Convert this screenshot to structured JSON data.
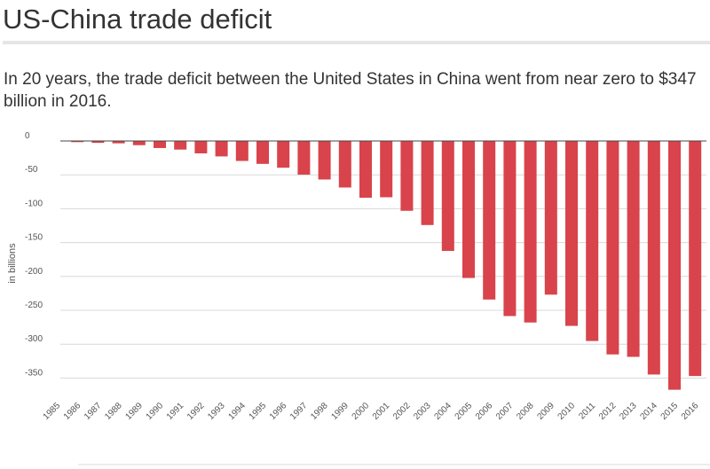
{
  "header": {
    "title": "US-China trade deficit",
    "subtitle": "In 20 years, the trade deficit between the United States in China went from near zero to $347 billion in 2016."
  },
  "colors": {
    "bar": "#d9434b",
    "grid": "#d8d8d8",
    "axis_text": "#555555"
  },
  "chart_data": {
    "type": "bar",
    "title": "",
    "xlabel": "",
    "ylabel": "in billions",
    "ylim": [
      -375,
      0
    ],
    "yticks": [
      0,
      -50,
      -100,
      -150,
      -200,
      -250,
      -300,
      -350
    ],
    "ytick_labels": [
      "0",
      "-50",
      "-100",
      "-150",
      "-200",
      "-250",
      "-300",
      "-350"
    ],
    "grid": true,
    "categories": [
      "1985",
      "1986",
      "1987",
      "1988",
      "1989",
      "1990",
      "1991",
      "1992",
      "1993",
      "1994",
      "1995",
      "1996",
      "1997",
      "1998",
      "1999",
      "2000",
      "2001",
      "2002",
      "2003",
      "2004",
      "2005",
      "2006",
      "2007",
      "2008",
      "2009",
      "2010",
      "2011",
      "2012",
      "2013",
      "2014",
      "2015",
      "2016"
    ],
    "values": [
      0,
      -1.7,
      -2.8,
      -3.5,
      -6.2,
      -10.4,
      -12.7,
      -18.3,
      -22.8,
      -29.5,
      -33.8,
      -39.5,
      -49.7,
      -56.9,
      -68.7,
      -83.8,
      -83.1,
      -103.1,
      -124.1,
      -162.3,
      -202.3,
      -234.1,
      -258.5,
      -268.0,
      -226.9,
      -273.0,
      -295.3,
      -315.1,
      -318.7,
      -344.8,
      -367.3,
      -347.0
    ]
  }
}
